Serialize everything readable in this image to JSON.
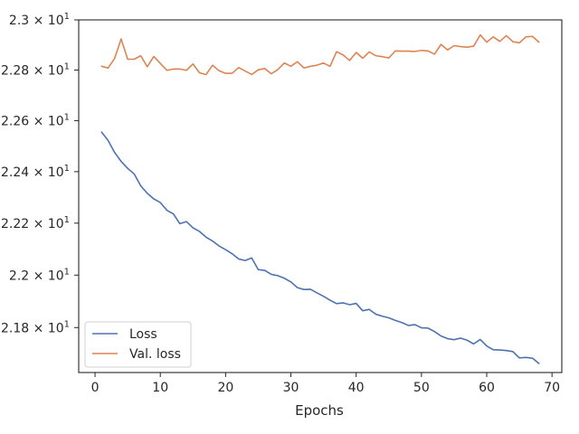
{
  "chart_data": {
    "type": "line",
    "title": "",
    "xlabel": "Epochs",
    "ylabel": "",
    "xlim": [
      -2.5,
      71.5
    ],
    "ylim": [
      21.63,
      23.0
    ],
    "yscale": "log",
    "grid": false,
    "legend_position": "lower-left",
    "x_ticks": [
      0,
      10,
      20,
      30,
      40,
      50,
      60,
      70
    ],
    "x_tick_labels": [
      "0",
      "10",
      "20",
      "30",
      "40",
      "50",
      "60",
      "70"
    ],
    "y_ticks": [
      21.8,
      22.0,
      22.2,
      22.4,
      22.6,
      22.8,
      23.0
    ],
    "y_tick_labels": [
      {
        "mantissa": "2.18",
        "exponent": "1"
      },
      {
        "mantissa": "2.2",
        "exponent": "1"
      },
      {
        "mantissa": "2.22",
        "exponent": "1"
      },
      {
        "mantissa": "2.24",
        "exponent": "1"
      },
      {
        "mantissa": "2.26",
        "exponent": "1"
      },
      {
        "mantissa": "2.28",
        "exponent": "1"
      },
      {
        "mantissa": "2.3",
        "exponent": "1"
      }
    ],
    "series": [
      {
        "name": "Loss",
        "color": "#4c72b0",
        "x": [
          1,
          2,
          3,
          4,
          5,
          6,
          7,
          8,
          9,
          10,
          11,
          12,
          13,
          14,
          15,
          16,
          17,
          18,
          19,
          20,
          21,
          22,
          23,
          24,
          25,
          26,
          27,
          28,
          29,
          30,
          31,
          32,
          33,
          34,
          35,
          36,
          37,
          38,
          39,
          40,
          41,
          42,
          43,
          44,
          45,
          46,
          47,
          48,
          49,
          50,
          51,
          52,
          53,
          54,
          55,
          56,
          57,
          58,
          59,
          60,
          61,
          62,
          63,
          64,
          65,
          66,
          67,
          68
        ],
        "values": [
          22.555,
          22.522,
          22.475,
          22.44,
          22.413,
          22.391,
          22.345,
          22.316,
          22.294,
          22.28,
          22.25,
          22.236,
          22.198,
          22.206,
          22.182,
          22.168,
          22.146,
          22.131,
          22.112,
          22.098,
          22.082,
          22.062,
          22.056,
          22.066,
          22.021,
          22.018,
          22.003,
          21.998,
          21.988,
          21.974,
          21.952,
          21.945,
          21.946,
          21.932,
          21.919,
          21.904,
          21.891,
          21.894,
          21.887,
          21.892,
          21.864,
          21.869,
          21.851,
          21.843,
          21.837,
          21.827,
          21.819,
          21.808,
          21.811,
          21.799,
          21.798,
          21.785,
          21.768,
          21.758,
          21.754,
          21.76,
          21.752,
          21.738,
          21.755,
          21.73,
          21.716,
          21.715,
          21.713,
          21.709,
          21.685,
          21.687,
          21.684,
          21.664
        ]
      },
      {
        "name": "Val. loss",
        "color": "#dd8452",
        "x": [
          1,
          2,
          3,
          4,
          5,
          6,
          7,
          8,
          9,
          10,
          11,
          12,
          13,
          14,
          15,
          16,
          17,
          18,
          19,
          20,
          21,
          22,
          23,
          24,
          25,
          26,
          27,
          28,
          29,
          30,
          31,
          32,
          33,
          34,
          35,
          36,
          37,
          38,
          39,
          40,
          41,
          42,
          43,
          44,
          45,
          46,
          47,
          48,
          49,
          50,
          51,
          52,
          53,
          54,
          55,
          56,
          57,
          58,
          59,
          60,
          61,
          62,
          63,
          64,
          65,
          66,
          67,
          68
        ],
        "values": [
          22.815,
          22.808,
          22.846,
          22.924,
          22.843,
          22.843,
          22.857,
          22.813,
          22.854,
          22.826,
          22.799,
          22.804,
          22.804,
          22.799,
          22.824,
          22.789,
          22.782,
          22.819,
          22.797,
          22.787,
          22.787,
          22.81,
          22.796,
          22.782,
          22.801,
          22.806,
          22.785,
          22.802,
          22.828,
          22.815,
          22.833,
          22.808,
          22.815,
          22.819,
          22.828,
          22.815,
          22.873,
          22.86,
          22.838,
          22.87,
          22.847,
          22.872,
          22.857,
          22.853,
          22.848,
          22.876,
          22.875,
          22.875,
          22.874,
          22.878,
          22.876,
          22.863,
          22.902,
          22.88,
          22.897,
          22.893,
          22.891,
          22.895,
          22.94,
          22.911,
          22.932,
          22.914,
          22.937,
          22.913,
          22.908,
          22.932,
          22.934,
          22.911
        ]
      }
    ]
  }
}
